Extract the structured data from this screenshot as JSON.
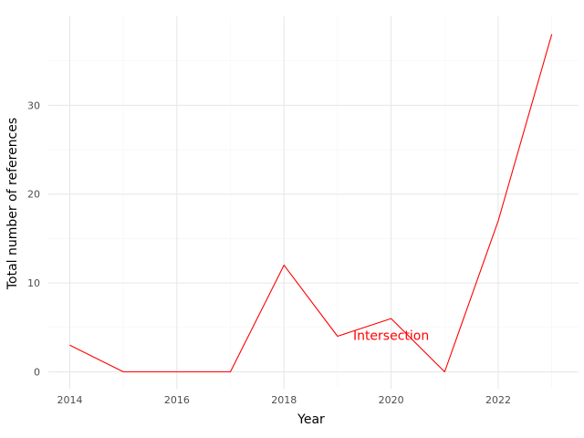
{
  "chart_data": {
    "type": "line",
    "title": "",
    "xlabel": "Year",
    "ylabel": "Total number of references",
    "x": [
      2014,
      2015,
      2016,
      2017,
      2018,
      2019,
      2020,
      2021,
      2022,
      2023
    ],
    "series": [
      {
        "color": "#ff0000",
        "values": [
          3,
          0,
          0,
          0,
          12,
          4,
          6,
          0,
          17,
          38
        ]
      }
    ],
    "xlim": [
      2013.6,
      2023.5
    ],
    "ylim": [
      -1.9,
      40.0
    ],
    "x_ticks": [
      2014,
      2016,
      2018,
      2020,
      2022
    ],
    "x_tick_labels": [
      "2014",
      "2016",
      "2018",
      "2020",
      "2022"
    ],
    "y_ticks": [
      0,
      10,
      20,
      30
    ],
    "y_tick_labels": [
      "0",
      "10",
      "20",
      "30"
    ],
    "x_minor_ticks": [
      2015,
      2017,
      2019,
      2021,
      2023
    ],
    "y_minor_ticks": [
      5,
      15,
      25,
      35
    ],
    "grid": true,
    "annotations": [
      {
        "text": "Intersection",
        "x": 2020,
        "y": 4,
        "color": "#ff0000"
      }
    ]
  }
}
